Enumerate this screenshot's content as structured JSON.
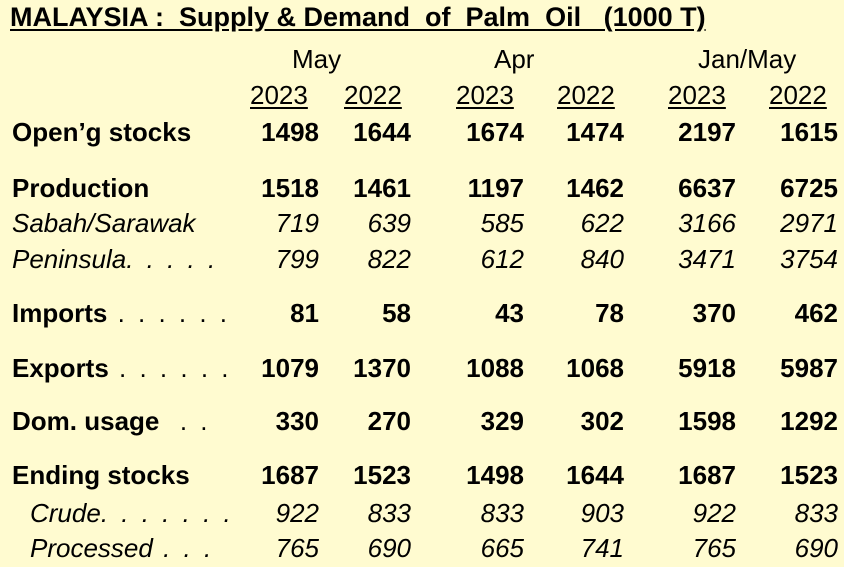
{
  "title": "MALAYSIA :  Supply & Demand  of  Palm  Oil   (1000 T)",
  "periods": [
    "May",
    "Apr",
    "Jan/May"
  ],
  "years": [
    "2023",
    "2022",
    "2023",
    "2022",
    "2023",
    "2022"
  ],
  "rows": [
    {
      "label": "Open’g stocks",
      "dots": "",
      "values": [
        "1498",
        "1644",
        "1674",
        "1474",
        "2197",
        "1615"
      ]
    },
    {
      "label": "Production",
      "dots": "",
      "values": [
        "1518",
        "1461",
        "1197",
        "1462",
        "6637",
        "6725"
      ]
    },
    {
      "label": "Sabah/Sarawak",
      "dots": "",
      "values": [
        "719",
        "639",
        "585",
        "622",
        "3166",
        "2971"
      ]
    },
    {
      "label": "Peninsula",
      "dots": ". . . . .",
      "values": [
        "799",
        "822",
        "612",
        "840",
        "3471",
        "3754"
      ]
    },
    {
      "label": "Imports",
      "dots": " . . . . . .",
      "values": [
        "81",
        "58",
        "43",
        "78",
        "370",
        "462"
      ]
    },
    {
      "label": "Exports",
      "dots": " . . . . . .",
      "values": [
        "1079",
        "1370",
        "1088",
        "1068",
        "5918",
        "5987"
      ]
    },
    {
      "label": "Dom. usage",
      "dots": "  . .",
      "values": [
        "330",
        "270",
        "329",
        "302",
        "1598",
        "1292"
      ]
    },
    {
      "label": "Ending stocks",
      "dots": "",
      "values": [
        "1687",
        "1523",
        "1498",
        "1644",
        "1687",
        "1523"
      ]
    },
    {
      "label": "Crude",
      "dots": ". . . . . . .",
      "values": [
        "922",
        "833",
        "833",
        "903",
        "922",
        "833"
      ]
    },
    {
      "label": "Processed",
      "dots": " . . .",
      "values": [
        "765",
        "690",
        "665",
        "741",
        "765",
        "690"
      ]
    }
  ]
}
